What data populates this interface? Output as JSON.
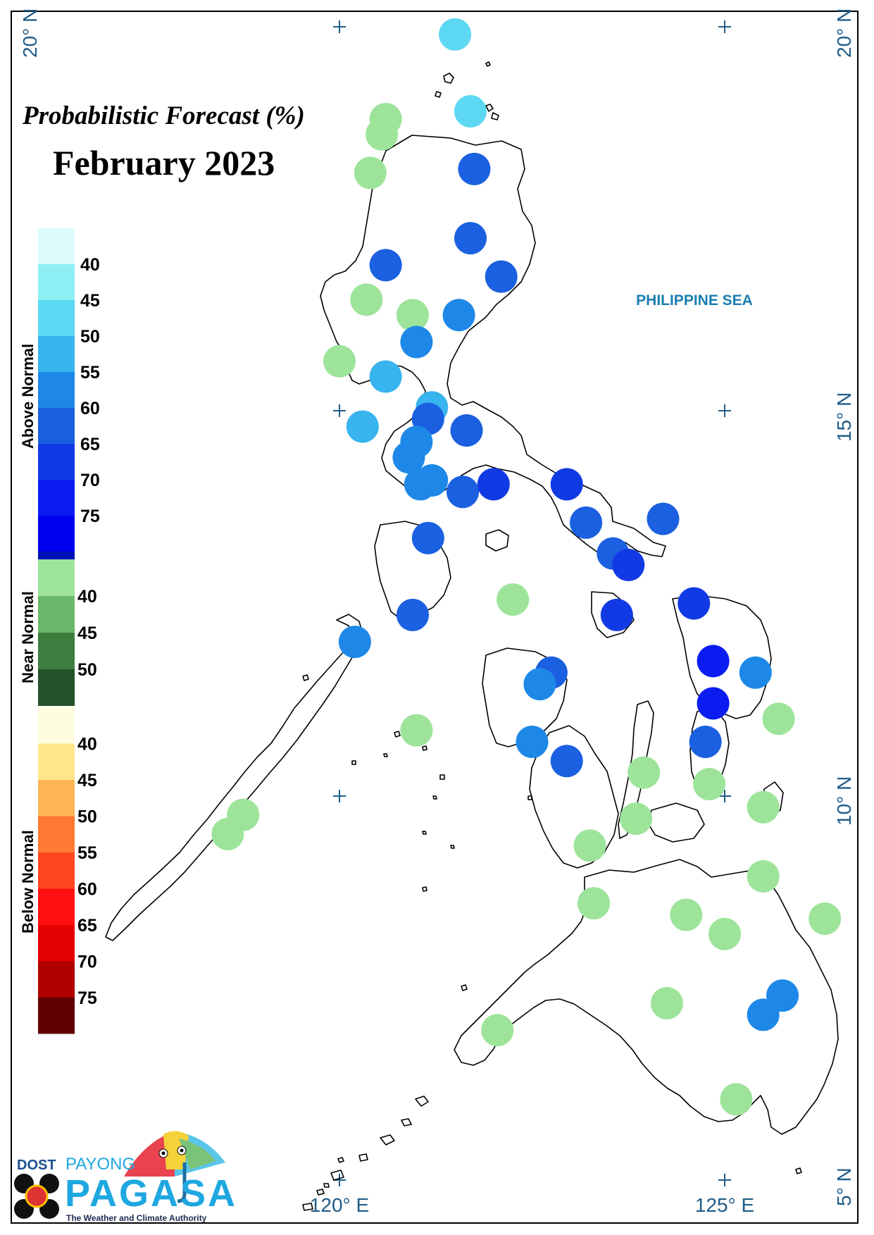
{
  "title": {
    "line1": "Probabilistic Forecast (%)",
    "line2": "February 2023"
  },
  "map": {
    "sea_label": "PHILIPPINE SEA",
    "lat_labels": [
      "20° N",
      "15° N",
      "10° N",
      "5° N"
    ],
    "lon_labels": [
      "120° E",
      "125° E"
    ],
    "stations": [
      {
        "lon": 121.5,
        "lat": 19.9,
        "cat": "above",
        "pct": 45
      },
      {
        "lon": 121.7,
        "lat": 18.9,
        "cat": "above",
        "pct": 45
      },
      {
        "lon": 120.6,
        "lat": 18.8,
        "cat": "near",
        "pct": 40
      },
      {
        "lon": 120.55,
        "lat": 18.6,
        "cat": "near",
        "pct": 40
      },
      {
        "lon": 120.4,
        "lat": 18.1,
        "cat": "near",
        "pct": 40
      },
      {
        "lon": 121.75,
        "lat": 18.15,
        "cat": "above",
        "pct": 60
      },
      {
        "lon": 121.7,
        "lat": 17.25,
        "cat": "above",
        "pct": 60
      },
      {
        "lon": 120.6,
        "lat": 16.9,
        "cat": "above",
        "pct": 60
      },
      {
        "lon": 122.1,
        "lat": 16.75,
        "cat": "above",
        "pct": 60
      },
      {
        "lon": 120.35,
        "lat": 16.45,
        "cat": "near",
        "pct": 40
      },
      {
        "lon": 120.95,
        "lat": 16.25,
        "cat": "near",
        "pct": 40
      },
      {
        "lon": 121.55,
        "lat": 16.25,
        "cat": "above",
        "pct": 55
      },
      {
        "lon": 121.0,
        "lat": 15.9,
        "cat": "above",
        "pct": 55
      },
      {
        "lon": 120.0,
        "lat": 15.65,
        "cat": "near",
        "pct": 40
      },
      {
        "lon": 120.6,
        "lat": 15.45,
        "cat": "above",
        "pct": 50
      },
      {
        "lon": 121.2,
        "lat": 15.05,
        "cat": "above",
        "pct": 50
      },
      {
        "lon": 121.15,
        "lat": 14.9,
        "cat": "above",
        "pct": 60
      },
      {
        "lon": 120.3,
        "lat": 14.8,
        "cat": "above",
        "pct": 50
      },
      {
        "lon": 121.65,
        "lat": 14.75,
        "cat": "above",
        "pct": 60
      },
      {
        "lon": 121.0,
        "lat": 14.6,
        "cat": "above",
        "pct": 55
      },
      {
        "lon": 120.9,
        "lat": 14.4,
        "cat": "above",
        "pct": 55
      },
      {
        "lon": 121.2,
        "lat": 14.1,
        "cat": "above",
        "pct": 55
      },
      {
        "lon": 121.05,
        "lat": 14.05,
        "cat": "above",
        "pct": 55
      },
      {
        "lon": 121.6,
        "lat": 13.95,
        "cat": "above",
        "pct": 60
      },
      {
        "lon": 122.0,
        "lat": 14.05,
        "cat": "above",
        "pct": 65
      },
      {
        "lon": 122.95,
        "lat": 14.05,
        "cat": "above",
        "pct": 65
      },
      {
        "lon": 123.2,
        "lat": 13.55,
        "cat": "above",
        "pct": 60
      },
      {
        "lon": 124.2,
        "lat": 13.6,
        "cat": "above",
        "pct": 60
      },
      {
        "lon": 121.15,
        "lat": 13.35,
        "cat": "above",
        "pct": 60
      },
      {
        "lon": 123.55,
        "lat": 13.15,
        "cat": "above",
        "pct": 60
      },
      {
        "lon": 123.75,
        "lat": 13.0,
        "cat": "above",
        "pct": 65
      },
      {
        "lon": 122.25,
        "lat": 12.55,
        "cat": "near",
        "pct": 40
      },
      {
        "lon": 120.95,
        "lat": 12.35,
        "cat": "above",
        "pct": 60
      },
      {
        "lon": 123.6,
        "lat": 12.35,
        "cat": "above",
        "pct": 65
      },
      {
        "lon": 124.6,
        "lat": 12.5,
        "cat": "above",
        "pct": 65
      },
      {
        "lon": 120.2,
        "lat": 12.0,
        "cat": "above",
        "pct": 55
      },
      {
        "lon": 124.85,
        "lat": 11.75,
        "cat": "above",
        "pct": 70
      },
      {
        "lon": 125.4,
        "lat": 11.6,
        "cat": "above",
        "pct": 55
      },
      {
        "lon": 122.75,
        "lat": 11.6,
        "cat": "above",
        "pct": 60
      },
      {
        "lon": 122.6,
        "lat": 11.45,
        "cat": "above",
        "pct": 55
      },
      {
        "lon": 124.85,
        "lat": 11.2,
        "cat": "above",
        "pct": 70
      },
      {
        "lon": 125.7,
        "lat": 11.0,
        "cat": "near",
        "pct": 40
      },
      {
        "lon": 121.0,
        "lat": 10.85,
        "cat": "near",
        "pct": 40
      },
      {
        "lon": 122.5,
        "lat": 10.7,
        "cat": "above",
        "pct": 55
      },
      {
        "lon": 124.75,
        "lat": 10.7,
        "cat": "above",
        "pct": 60
      },
      {
        "lon": 122.95,
        "lat": 10.45,
        "cat": "above",
        "pct": 60
      },
      {
        "lon": 123.95,
        "lat": 10.3,
        "cat": "near",
        "pct": 40
      },
      {
        "lon": 124.8,
        "lat": 10.15,
        "cat": "near",
        "pct": 40
      },
      {
        "lon": 125.5,
        "lat": 9.85,
        "cat": "near",
        "pct": 40
      },
      {
        "lon": 118.75,
        "lat": 9.75,
        "cat": "near",
        "pct": 40
      },
      {
        "lon": 118.55,
        "lat": 9.5,
        "cat": "near",
        "pct": 40
      },
      {
        "lon": 123.85,
        "lat": 9.7,
        "cat": "near",
        "pct": 40
      },
      {
        "lon": 123.25,
        "lat": 9.35,
        "cat": "near",
        "pct": 40
      },
      {
        "lon": 125.5,
        "lat": 8.95,
        "cat": "near",
        "pct": 40
      },
      {
        "lon": 123.3,
        "lat": 8.6,
        "cat": "near",
        "pct": 40
      },
      {
        "lon": 124.5,
        "lat": 8.45,
        "cat": "near",
        "pct": 40
      },
      {
        "lon": 126.3,
        "lat": 8.4,
        "cat": "near",
        "pct": 40
      },
      {
        "lon": 125.0,
        "lat": 8.2,
        "cat": "near",
        "pct": 40
      },
      {
        "lon": 124.25,
        "lat": 7.3,
        "cat": "near",
        "pct": 40
      },
      {
        "lon": 125.75,
        "lat": 7.4,
        "cat": "above",
        "pct": 55
      },
      {
        "lon": 125.5,
        "lat": 7.15,
        "cat": "above",
        "pct": 55
      },
      {
        "lon": 122.05,
        "lat": 6.95,
        "cat": "near",
        "pct": 40
      },
      {
        "lon": 125.15,
        "lat": 6.05,
        "cat": "near",
        "pct": 40
      }
    ]
  },
  "legend": {
    "above_normal": {
      "label": "Above Normal",
      "colors": [
        "#dcfcfc",
        "#8ef0f4",
        "#5dd8f2",
        "#38b4ee",
        "#1e88e8",
        "#1a60e0",
        "#123ae4",
        "#0a1cf0",
        "#0000ee",
        "#0010b8"
      ],
      "ticks": [
        "40",
        "45",
        "50",
        "55",
        "60",
        "65",
        "70",
        "75"
      ]
    },
    "near_normal": {
      "label": "Near Normal",
      "colors": [
        "#9de49a",
        "#6ab86a",
        "#3d7d3e",
        "#23512a"
      ],
      "ticks": [
        "40",
        "45",
        "50"
      ]
    },
    "below_normal": {
      "label": "Below Normal",
      "colors": [
        "#fffde0",
        "#ffe68a",
        "#ffb655",
        "#ff7a32",
        "#ff4520",
        "#ff1010",
        "#e30000",
        "#b00000",
        "#600000"
      ],
      "ticks": [
        "40",
        "45",
        "50",
        "55",
        "60",
        "65",
        "70",
        "75"
      ]
    }
  },
  "logo": {
    "agency": "DOST",
    "program": "PAYONG",
    "name": "PAGASA",
    "tagline": "The Weather and Climate Authority"
  }
}
